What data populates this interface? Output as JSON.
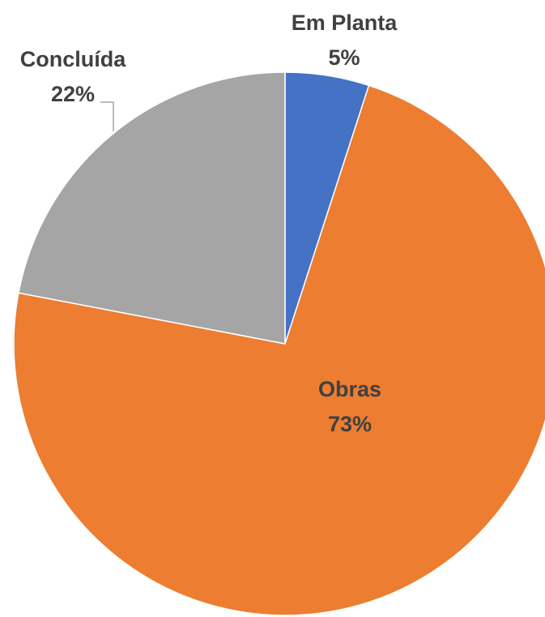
{
  "chart_data": {
    "type": "pie",
    "categories": [
      "Em Planta",
      "Obras",
      "Concluída"
    ],
    "values": [
      5,
      73,
      22
    ],
    "value_labels": [
      "5%",
      "73%",
      "22%"
    ],
    "colors": [
      "#4472c4",
      "#ed7d31",
      "#a5a5a5"
    ]
  }
}
